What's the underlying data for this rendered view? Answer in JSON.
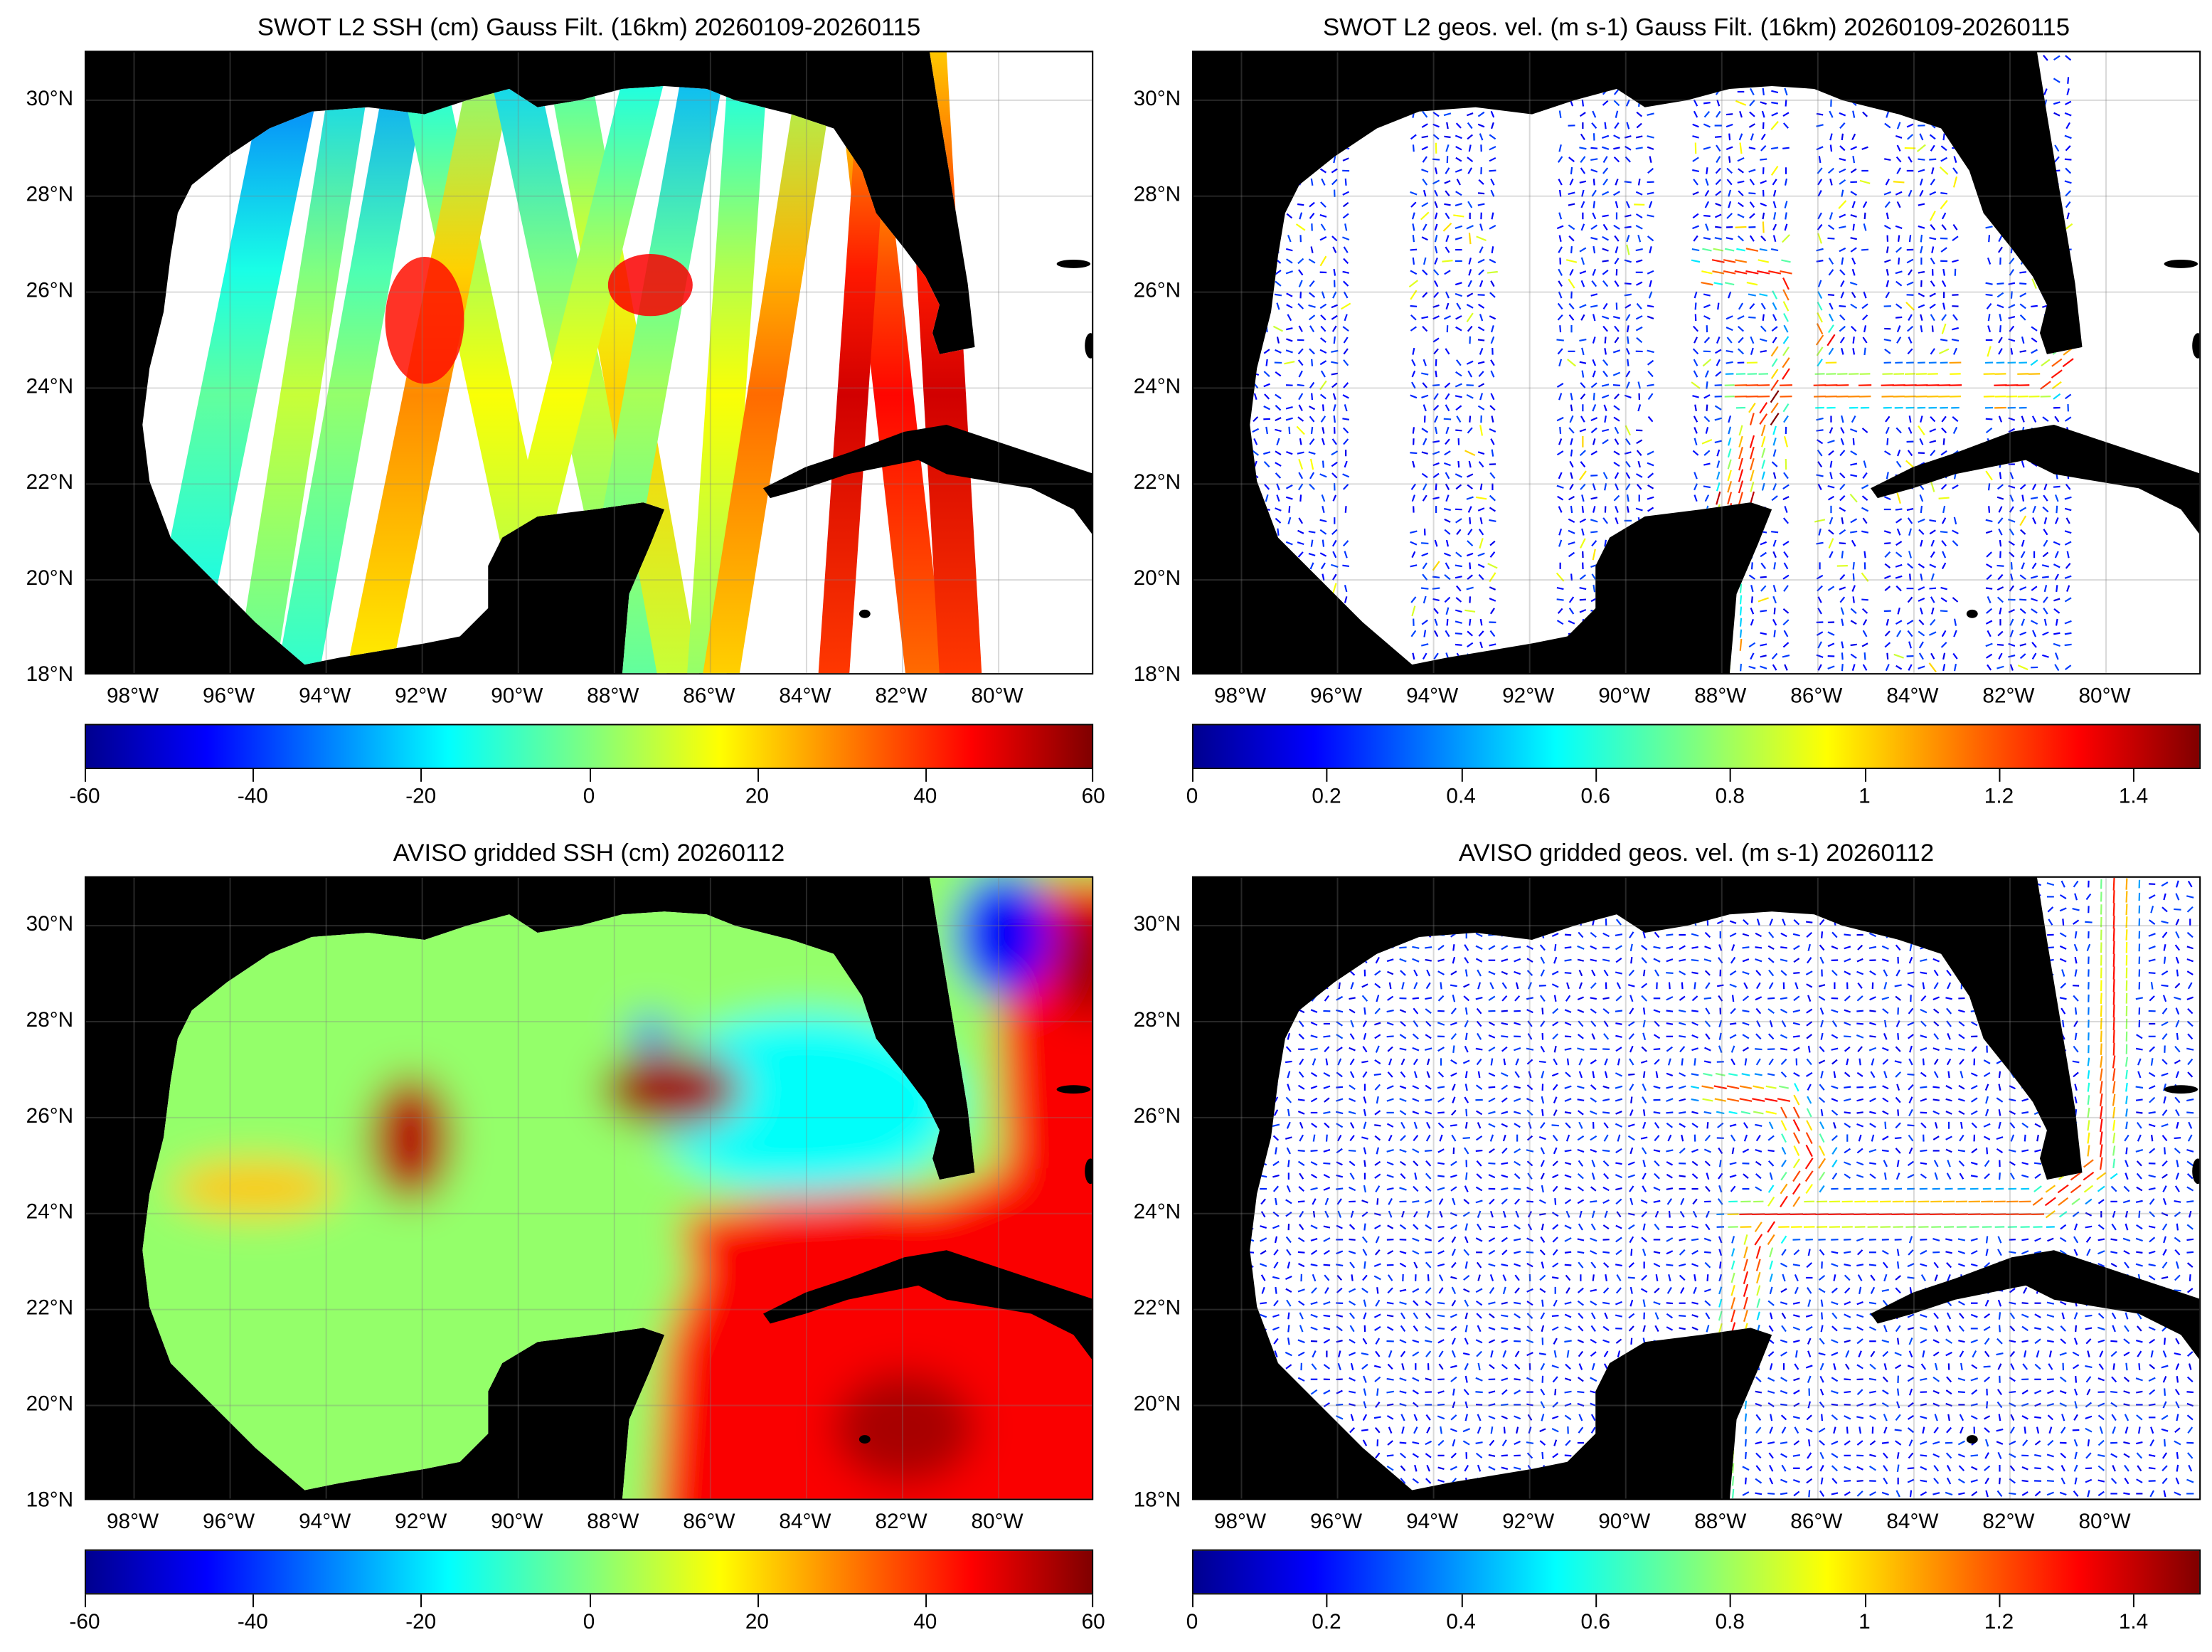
{
  "lat_labels": [
    {
      "lat": 18,
      "text": "18°N"
    },
    {
      "lat": 20,
      "text": "20°N"
    },
    {
      "lat": 22,
      "text": "22°N"
    },
    {
      "lat": 24,
      "text": "24°N"
    },
    {
      "lat": 26,
      "text": "26°N"
    },
    {
      "lat": 28,
      "text": "28°N"
    },
    {
      "lat": 30,
      "text": "30°N"
    }
  ],
  "lon_labels": [
    {
      "lon": -98,
      "text": "98°W"
    },
    {
      "lon": -96,
      "text": "96°W"
    },
    {
      "lon": -94,
      "text": "94°W"
    },
    {
      "lon": -92,
      "text": "92°W"
    },
    {
      "lon": -90,
      "text": "90°W"
    },
    {
      "lon": -88,
      "text": "88°W"
    },
    {
      "lon": -86,
      "text": "86°W"
    },
    {
      "lon": -84,
      "text": "84°W"
    },
    {
      "lon": -82,
      "text": "82°W"
    },
    {
      "lon": -80,
      "text": "80°W"
    }
  ],
  "map_extent": {
    "lon": [
      -99,
      -78
    ],
    "lat": [
      18,
      31
    ]
  },
  "colormap": "jet",
  "colormap_stops": [
    "#00008f",
    "#0000ff",
    "#00ffff",
    "#7fff7f",
    "#ffff00",
    "#ff0000",
    "#800000"
  ],
  "land_color": "#000000",
  "panels": [
    {
      "title": "SWOT L2 SSH (cm) Gauss Filt. (16km) 20260109-20260115",
      "kind": "ssh-swath",
      "range": [
        -60,
        60
      ],
      "ticks": [
        "-60",
        "-40",
        "-20",
        "0",
        "20",
        "40",
        "60"
      ],
      "tick_values": [
        -60,
        -40,
        -20,
        0,
        20,
        40,
        60
      ]
    },
    {
      "title": "SWOT L2 geos. vel. (m s-1) Gauss Filt. (16km) 20260109-20260115",
      "kind": "vel-swath",
      "range": [
        0,
        1.5
      ],
      "ticks": [
        "0",
        "0.2",
        "0.4",
        "0.6",
        "0.8",
        "1",
        "1.2",
        "1.4"
      ],
      "tick_values": [
        0,
        0.2,
        0.4,
        0.6,
        0.8,
        1,
        1.2,
        1.4
      ]
    },
    {
      "title": "AVISO gridded SSH (cm) 20260112",
      "kind": "ssh-grid",
      "range": [
        -60,
        60
      ],
      "ticks": [
        "-60",
        "-40",
        "-20",
        "0",
        "20",
        "40",
        "60"
      ],
      "tick_values": [
        -60,
        -40,
        -20,
        0,
        20,
        40,
        60
      ]
    },
    {
      "title": "AVISO gridded geos. vel. (m s-1)  20260112",
      "kind": "vel-grid",
      "range": [
        0,
        1.5
      ],
      "ticks": [
        "0",
        "0.2",
        "0.4",
        "0.6",
        "0.8",
        "1",
        "1.2",
        "1.4"
      ],
      "tick_values": [
        0,
        0.2,
        0.4,
        0.6,
        0.8,
        1,
        1.2,
        1.4
      ]
    }
  ]
}
